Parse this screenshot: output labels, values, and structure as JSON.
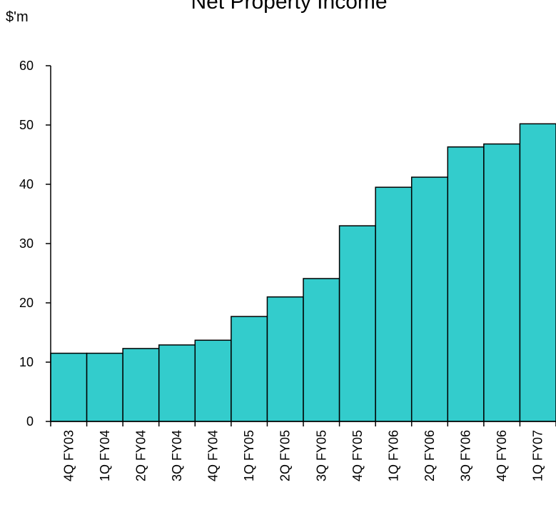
{
  "chart_data": {
    "type": "bar",
    "title": "Net Property Income",
    "ylabel": "$'m",
    "xlabel": "",
    "categories": [
      "4Q FY03",
      "1Q FY04",
      "2Q FY04",
      "3Q FY04",
      "4Q FY04",
      "1Q FY05",
      "2Q FY05",
      "3Q FY05",
      "4Q FY05",
      "1Q FY06",
      "2Q FY06",
      "3Q FY06",
      "4Q FY06",
      "1Q FY07"
    ],
    "values": [
      11.5,
      11.5,
      12.3,
      12.9,
      13.7,
      17.7,
      21.0,
      24.1,
      33.0,
      39.5,
      41.2,
      46.3,
      46.8,
      50.2
    ],
    "ylim": [
      0,
      60
    ],
    "yticks": [
      "0",
      "10",
      "20",
      "30",
      "40",
      "50",
      "60"
    ],
    "grid": false,
    "bar_color": "#33CCCC"
  }
}
